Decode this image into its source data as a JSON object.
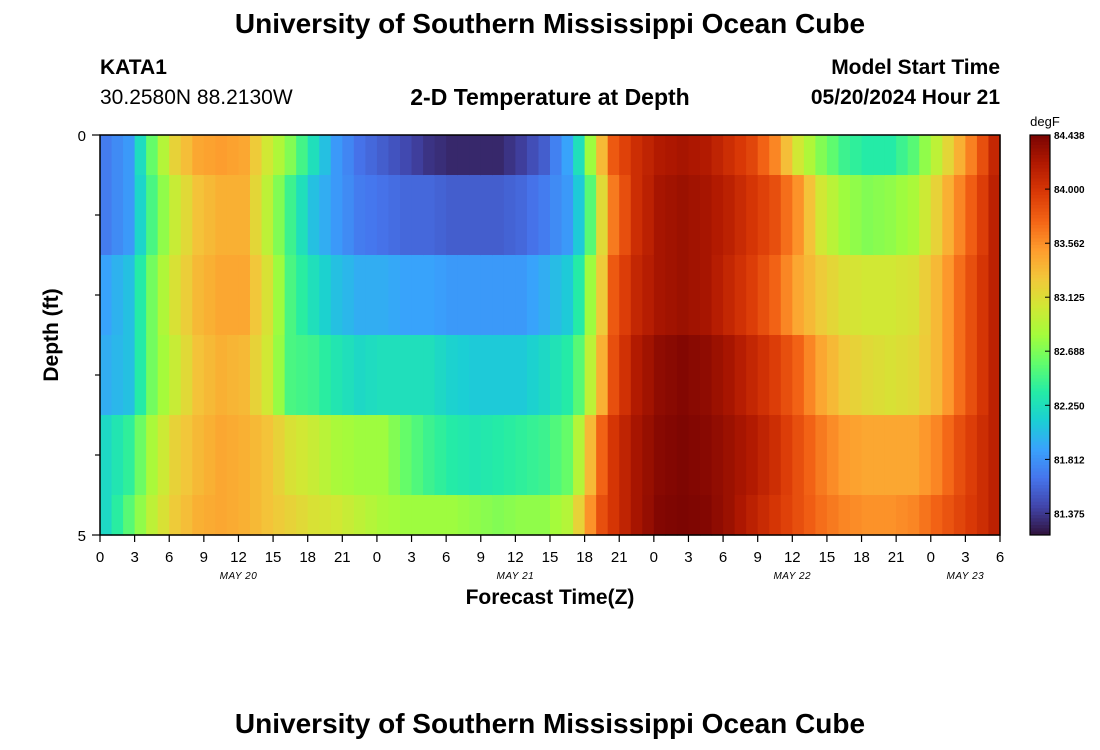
{
  "header": {
    "title": "University of Southern Mississippi Ocean Cube",
    "footer_title": "University of Southern Mississippi Ocean Cube",
    "station": "KATA1",
    "coords": "30.2580N  88.2130W",
    "model_start_label": "Model Start Time",
    "model_start_value": "05/20/2024 Hour 21"
  },
  "chart_data": {
    "type": "heatmap",
    "title": "2-D Temperature at Depth",
    "xlabel": "Forecast Time(Z)",
    "ylabel": "Depth (ft)",
    "y_ticks": [
      "0",
      "5"
    ],
    "ylim": [
      0,
      5
    ],
    "x_tick_labels": [
      "0",
      "3",
      "6",
      "9",
      "12",
      "15",
      "18",
      "21",
      "0",
      "3",
      "6",
      "9",
      "12",
      "15",
      "18",
      "21",
      "0",
      "3",
      "6",
      "9",
      "12",
      "15",
      "18",
      "21",
      "0",
      "3",
      "6"
    ],
    "date_labels": [
      {
        "label": "MAY 20",
        "tick_index": 4
      },
      {
        "label": "MAY 21",
        "tick_index": 12
      },
      {
        "label": "MAY 22",
        "tick_index": 20
      },
      {
        "label": "MAY 23",
        "tick_index": 25
      }
    ],
    "colorbar": {
      "unit": "degF",
      "min": 81.2,
      "max": 84.438,
      "tick_labels": [
        "84.438",
        "84.000",
        "83.562",
        "83.125",
        "82.688",
        "82.250",
        "81.812",
        "81.375"
      ],
      "tick_values": [
        84.438,
        84.0,
        83.562,
        83.125,
        82.688,
        82.25,
        81.812,
        81.375
      ],
      "colors": [
        "#30123b",
        "#4145ab",
        "#4675ed",
        "#39a2fc",
        "#1bcfd4",
        "#24eca6",
        "#61fc6c",
        "#a4fc3b",
        "#d1e834",
        "#f3c63a",
        "#fe9b2d",
        "#f36315",
        "#d93806",
        "#b11901",
        "#7a0402"
      ]
    },
    "time_columns": 78,
    "depth_rows": 6,
    "temperature_profiles_degF": [
      [
        0,
        81.7,
        81.7,
        81.9,
        81.95,
        82.2,
        82.2
      ],
      [
        2,
        81.85,
        81.85,
        82.05,
        82.05,
        82.4,
        82.55
      ],
      [
        4,
        82.6,
        82.5,
        82.65,
        82.65,
        82.85,
        82.95
      ],
      [
        6,
        83.2,
        83.0,
        83.1,
        83.0,
        83.2,
        83.25
      ],
      [
        8,
        83.45,
        83.3,
        83.35,
        83.3,
        83.35,
        83.4
      ],
      [
        10,
        83.5,
        83.4,
        83.45,
        83.4,
        83.45,
        83.45
      ],
      [
        12,
        83.45,
        83.4,
        83.45,
        83.35,
        83.4,
        83.4
      ],
      [
        14,
        83.05,
        82.95,
        83.1,
        83.05,
        83.3,
        83.3
      ],
      [
        16,
        82.7,
        82.45,
        82.5,
        82.5,
        83.1,
        83.2
      ],
      [
        18,
        82.25,
        82.05,
        82.25,
        82.45,
        83.0,
        83.1
      ],
      [
        20,
        81.85,
        81.85,
        82.05,
        82.3,
        82.85,
        83.05
      ],
      [
        22,
        81.65,
        81.7,
        81.95,
        82.2,
        82.8,
        82.95
      ],
      [
        24,
        81.55,
        81.65,
        81.95,
        82.25,
        82.8,
        82.85
      ],
      [
        26,
        81.45,
        81.6,
        81.9,
        82.25,
        82.6,
        82.8
      ],
      [
        28,
        81.35,
        81.6,
        81.9,
        82.25,
        82.45,
        82.8
      ],
      [
        30,
        81.3,
        81.55,
        81.85,
        82.15,
        82.35,
        82.8
      ],
      [
        32,
        81.3,
        81.55,
        81.85,
        82.1,
        82.3,
        82.75
      ],
      [
        34,
        81.3,
        81.55,
        81.85,
        82.1,
        82.35,
        82.7
      ],
      [
        36,
        81.4,
        81.6,
        81.85,
        82.1,
        82.4,
        82.75
      ],
      [
        38,
        81.55,
        81.7,
        81.95,
        82.2,
        82.45,
        82.75
      ],
      [
        40,
        81.9,
        81.85,
        82.1,
        82.35,
        82.6,
        82.9
      ],
      [
        41,
        82.25,
        82.1,
        82.35,
        82.55,
        82.9,
        83.2
      ],
      [
        42,
        82.8,
        82.55,
        82.8,
        82.95,
        83.35,
        83.55
      ],
      [
        43,
        83.35,
        83.15,
        83.25,
        83.4,
        83.75,
        83.85
      ],
      [
        44,
        83.8,
        83.65,
        83.8,
        83.85,
        84.0,
        84.0
      ],
      [
        46,
        84.05,
        84.05,
        84.1,
        84.2,
        84.25,
        84.25
      ],
      [
        48,
        84.2,
        84.25,
        84.25,
        84.35,
        84.38,
        84.4
      ],
      [
        50,
        84.25,
        84.3,
        84.3,
        84.4,
        84.42,
        84.43
      ],
      [
        52,
        84.2,
        84.25,
        84.25,
        84.35,
        84.38,
        84.4
      ],
      [
        54,
        84.05,
        84.15,
        84.1,
        84.25,
        84.3,
        84.3
      ],
      [
        56,
        83.9,
        84.0,
        83.95,
        84.1,
        84.2,
        84.15
      ],
      [
        58,
        83.6,
        83.85,
        83.75,
        83.95,
        84.05,
        84.0
      ],
      [
        60,
        83.05,
        83.55,
        83.45,
        83.75,
        83.85,
        83.85
      ],
      [
        62,
        82.7,
        83.05,
        83.25,
        83.45,
        83.65,
        83.7
      ],
      [
        64,
        82.45,
        82.8,
        83.1,
        83.25,
        83.5,
        83.6
      ],
      [
        66,
        82.35,
        82.7,
        83.05,
        83.15,
        83.45,
        83.55
      ],
      [
        68,
        82.35,
        82.75,
        83.05,
        83.1,
        83.45,
        83.55
      ],
      [
        70,
        82.55,
        82.85,
        83.1,
        83.15,
        83.45,
        83.6
      ],
      [
        72,
        82.95,
        83.2,
        83.35,
        83.35,
        83.6,
        83.75
      ],
      [
        74,
        83.4,
        83.6,
        83.7,
        83.7,
        83.85,
        83.9
      ],
      [
        76,
        83.85,
        83.95,
        84.0,
        84.0,
        84.05,
        84.05
      ],
      [
        77,
        84.1,
        84.15,
        84.15,
        84.15,
        84.15,
        84.15
      ]
    ]
  }
}
